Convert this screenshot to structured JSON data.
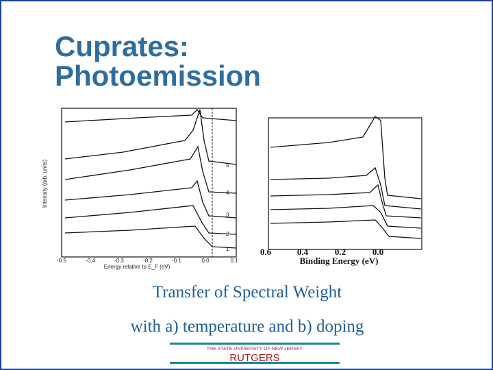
{
  "header": {
    "title_lines": [
      "Cuprates:",
      "Photoemission"
    ]
  },
  "figures": {
    "left": {
      "y_label": "Intensity (arb. units)",
      "x_label": "Energy relative to E_F (eV)",
      "x_ticks": [
        "-0.5",
        "-0.4",
        "-0.3",
        "-0.2",
        "-0.1",
        "0.0",
        "0.1"
      ],
      "curve_labels": [
        "5",
        "4",
        "3",
        "2",
        "1"
      ]
    },
    "right": {
      "x_label": "Binding Energy (eV)",
      "x_ticks": [
        "0.6",
        "0.4",
        "0.2",
        "0.0"
      ]
    }
  },
  "caption": {
    "lines": [
      "Transfer of Spectral Weight",
      "with  a)  temperature and b) doping"
    ]
  },
  "footer": {
    "tagline": "THE STATE UNIVERSITY OF NEW JERSEY",
    "name": "RUTGERS"
  }
}
